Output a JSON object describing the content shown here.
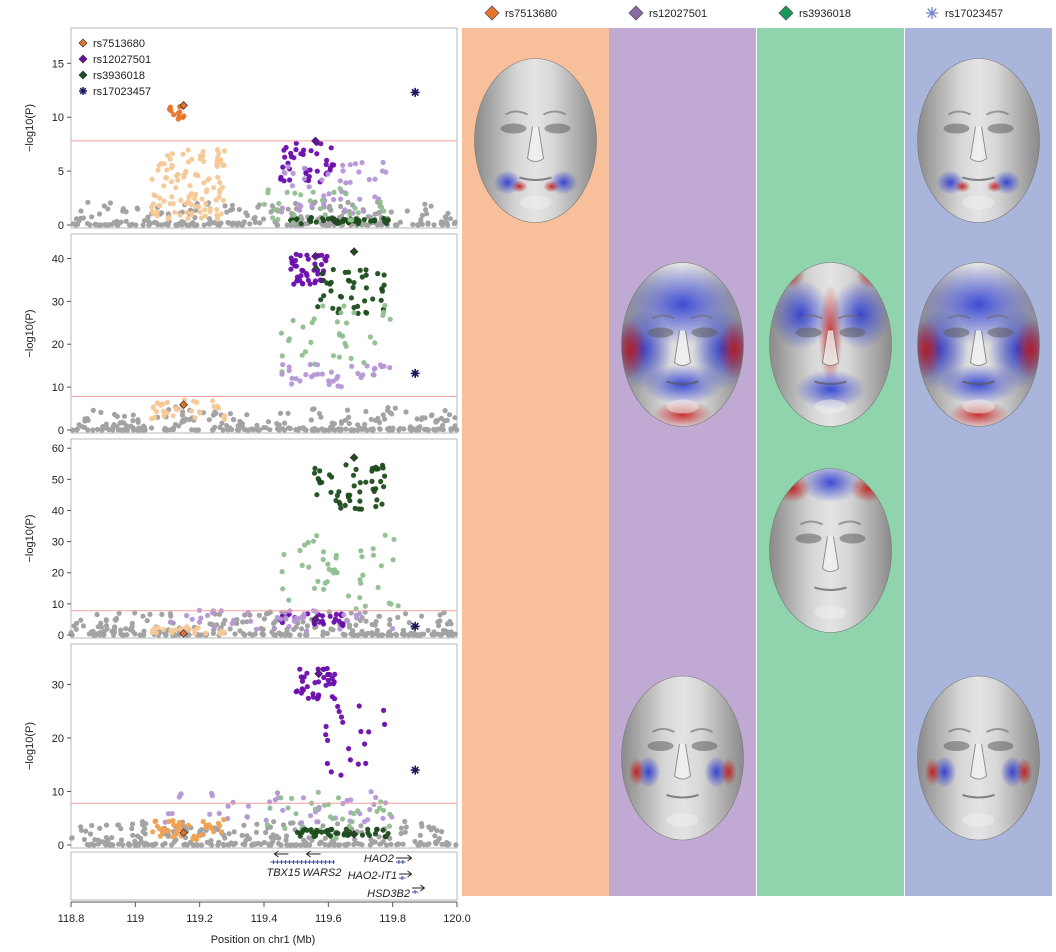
{
  "legend_top": [
    {
      "label": "rs7513680",
      "color": "#e8742a",
      "marker": "diamond"
    },
    {
      "label": "rs12027501",
      "color": "#8a6aa6",
      "marker": "diamond"
    },
    {
      "label": "rs3936018",
      "color": "#169a5a",
      "marker": "diamond"
    },
    {
      "label": "rs17023457",
      "color": "#6f86c8",
      "marker": "star"
    }
  ],
  "legend_inset": [
    {
      "label": "rs7513680",
      "color": "#e8742a",
      "marker": "diamond"
    },
    {
      "label": "rs12027501",
      "color": "#6a0dad",
      "marker": "diamond"
    },
    {
      "label": "rs3936018",
      "color": "#1e4d1e",
      "marker": "diamond"
    },
    {
      "label": "rs17023457",
      "color": "#1a1a5e",
      "marker": "star"
    }
  ],
  "columns": [
    {
      "snp": "rs7513680",
      "bg": "#f7bf9a"
    },
    {
      "snp": "rs12027501",
      "bg": "#c0a9d2"
    },
    {
      "snp": "rs3936018",
      "bg": "#8fd4ac"
    },
    {
      "snp": "rs17023457",
      "bg": "#a9b5da"
    }
  ],
  "faces": [
    {
      "panel": 1,
      "column": 1,
      "pattern": "mouth"
    },
    {
      "panel": 1,
      "column": 4,
      "pattern": "mouth"
    },
    {
      "panel": 2,
      "column": 2,
      "pattern": "global"
    },
    {
      "panel": 2,
      "column": 3,
      "pattern": "nose"
    },
    {
      "panel": 2,
      "column": 4,
      "pattern": "global"
    },
    {
      "panel": 3,
      "column": 3,
      "pattern": "forehead"
    },
    {
      "panel": 4,
      "column": 2,
      "pattern": "cheek"
    },
    {
      "panel": 4,
      "column": 4,
      "pattern": "cheek"
    }
  ],
  "genes": [
    {
      "name": "TBX15",
      "start": 119.42,
      "end": 119.52,
      "strand": "-",
      "row": 1
    },
    {
      "name": "WARS2",
      "start": 119.52,
      "end": 119.62,
      "strand": "-",
      "row": 1
    },
    {
      "name": "HAO2",
      "start": 119.81,
      "end": 119.84,
      "strand": "+",
      "row": 0
    },
    {
      "name": "HAO2-IT1",
      "start": 119.82,
      "end": 119.84,
      "strand": "+",
      "row": 1
    },
    {
      "name": "HSD3B2",
      "start": 119.86,
      "end": 119.88,
      "strand": "+",
      "row": 2
    }
  ],
  "chart_data": {
    "type": "scatter",
    "xlabel": "Position on chr1 (Mb)",
    "ylabel": "−log10(P)",
    "xlim": [
      118.8,
      120.0
    ],
    "xticks": [
      "118.8",
      "119",
      "119.2",
      "119.4",
      "119.6",
      "119.8",
      "120.0"
    ],
    "xtick_values": [
      118.8,
      119.0,
      119.2,
      119.4,
      119.6,
      119.8,
      120.0
    ],
    "threshold": 7.8,
    "panels": [
      {
        "ylim": [
          0,
          18
        ],
        "yticks": [
          0,
          5,
          10,
          15
        ],
        "lead_snps": [
          {
            "snp": "rs7513680",
            "x": 119.15,
            "y": 11.1
          },
          {
            "snp": "rs12027501",
            "x": 119.56,
            "y": 7.8
          },
          {
            "snp": "rs3936018",
            "x": 119.62,
            "y": 0.4
          },
          {
            "snp": "rs17023457",
            "x": 119.87,
            "y": 12.3
          }
        ],
        "clusters": [
          {
            "color": "#e8742a",
            "x": [
              119.1,
              119.16
            ],
            "y": [
              9.8,
              11.2
            ],
            "n": 12
          },
          {
            "color": "#f5c896",
            "x": [
              119.05,
              119.28
            ],
            "y": [
              3.0,
              7.0
            ],
            "n": 60
          },
          {
            "color": "#f5c896",
            "x": [
              119.05,
              119.28
            ],
            "y": [
              0.5,
              3.0
            ],
            "n": 50
          },
          {
            "color": "#6a0dad",
            "x": [
              119.45,
              119.62
            ],
            "y": [
              4.0,
              8.0
            ],
            "n": 40
          },
          {
            "color": "#b596d6",
            "x": [
              119.45,
              119.78
            ],
            "y": [
              1.0,
              6.0
            ],
            "n": 45
          },
          {
            "color": "#1e4d1e",
            "x": [
              119.48,
              119.8
            ],
            "y": [
              0.1,
              0.7
            ],
            "n": 40
          },
          {
            "color": "#8fbf8f",
            "x": [
              119.4,
              119.8
            ],
            "y": [
              0.2,
              3.5
            ],
            "n": 30
          }
        ]
      },
      {
        "ylim": [
          0,
          45
        ],
        "yticks": [
          0,
          10,
          20,
          30,
          40
        ],
        "lead_snps": [
          {
            "snp": "rs7513680",
            "x": 119.15,
            "y": 5.9
          },
          {
            "snp": "rs12027501",
            "x": 119.56,
            "y": 40.5
          },
          {
            "snp": "rs3936018",
            "x": 119.68,
            "y": 41.6
          },
          {
            "snp": "rs17023457",
            "x": 119.87,
            "y": 13.2
          }
        ],
        "clusters": [
          {
            "color": "#6a0dad",
            "x": [
              119.48,
              119.6
            ],
            "y": [
              34.0,
              41.0
            ],
            "n": 40
          },
          {
            "color": "#1e4d1e",
            "x": [
              119.55,
              119.78
            ],
            "y": [
              27.0,
              38.0
            ],
            "n": 45
          },
          {
            "color": "#8fbf8f",
            "x": [
              119.45,
              119.8
            ],
            "y": [
              12.0,
              30.0
            ],
            "n": 35
          },
          {
            "color": "#b596d6",
            "x": [
              119.45,
              119.8
            ],
            "y": [
              10.0,
              16.0
            ],
            "n": 35
          },
          {
            "color": "#f5c896",
            "x": [
              119.05,
              119.28
            ],
            "y": [
              2.0,
              7.0
            ],
            "n": 35
          }
        ]
      },
      {
        "ylim": [
          0,
          62
        ],
        "yticks": [
          0,
          10,
          20,
          30,
          40,
          50,
          60
        ],
        "lead_snps": [
          {
            "snp": "rs7513680",
            "x": 119.15,
            "y": 0.5
          },
          {
            "snp": "rs12027501",
            "x": 119.56,
            "y": 5.0
          },
          {
            "snp": "rs3936018",
            "x": 119.68,
            "y": 57.0
          },
          {
            "snp": "rs17023457",
            "x": 119.87,
            "y": 2.8
          }
        ],
        "clusters": [
          {
            "color": "#1e4d1e",
            "x": [
              119.55,
              119.78
            ],
            "y": [
              39.0,
              55.0
            ],
            "n": 50
          },
          {
            "color": "#8fbf8f",
            "x": [
              119.45,
              119.82
            ],
            "y": [
              8.0,
              33.0
            ],
            "n": 45
          },
          {
            "color": "#6a0dad",
            "x": [
              119.45,
              119.65
            ],
            "y": [
              3.0,
              7.0
            ],
            "n": 30
          },
          {
            "color": "#b596d6",
            "x": [
              119.05,
              119.8
            ],
            "y": [
              1.0,
              8.0
            ],
            "n": 40
          },
          {
            "color": "#f5c896",
            "x": [
              119.05,
              119.28
            ],
            "y": [
              0.5,
              3.0
            ],
            "n": 25
          }
        ]
      },
      {
        "ylim": [
          0,
          37
        ],
        "yticks": [
          0,
          10,
          20,
          30
        ],
        "lead_snps": [
          {
            "snp": "rs7513680",
            "x": 119.15,
            "y": 2.3
          },
          {
            "snp": "rs12027501",
            "x": 119.57,
            "y": 32.0
          },
          {
            "snp": "rs3936018",
            "x": 119.68,
            "y": 2.0
          },
          {
            "snp": "rs17023457",
            "x": 119.87,
            "y": 14.0
          }
        ],
        "clusters": [
          {
            "color": "#6a0dad",
            "x": [
              119.5,
              119.62
            ],
            "y": [
              27.0,
              33.0
            ],
            "n": 35
          },
          {
            "color": "#6a0dad",
            "x": [
              119.58,
              119.8
            ],
            "y": [
              13.0,
              26.0
            ],
            "n": 20
          },
          {
            "color": "#b596d6",
            "x": [
              119.05,
              119.8
            ],
            "y": [
              4.0,
              10.0
            ],
            "n": 45
          },
          {
            "color": "#8fbf8f",
            "x": [
              119.4,
              119.8
            ],
            "y": [
              1.0,
              10.0
            ],
            "n": 30
          },
          {
            "color": "#1e4d1e",
            "x": [
              119.5,
              119.8
            ],
            "y": [
              1.5,
              3.0
            ],
            "n": 40
          },
          {
            "color": "#f0a050",
            "x": [
              119.05,
              119.28
            ],
            "y": [
              1.0,
              5.0
            ],
            "n": 40
          }
        ]
      }
    ]
  }
}
